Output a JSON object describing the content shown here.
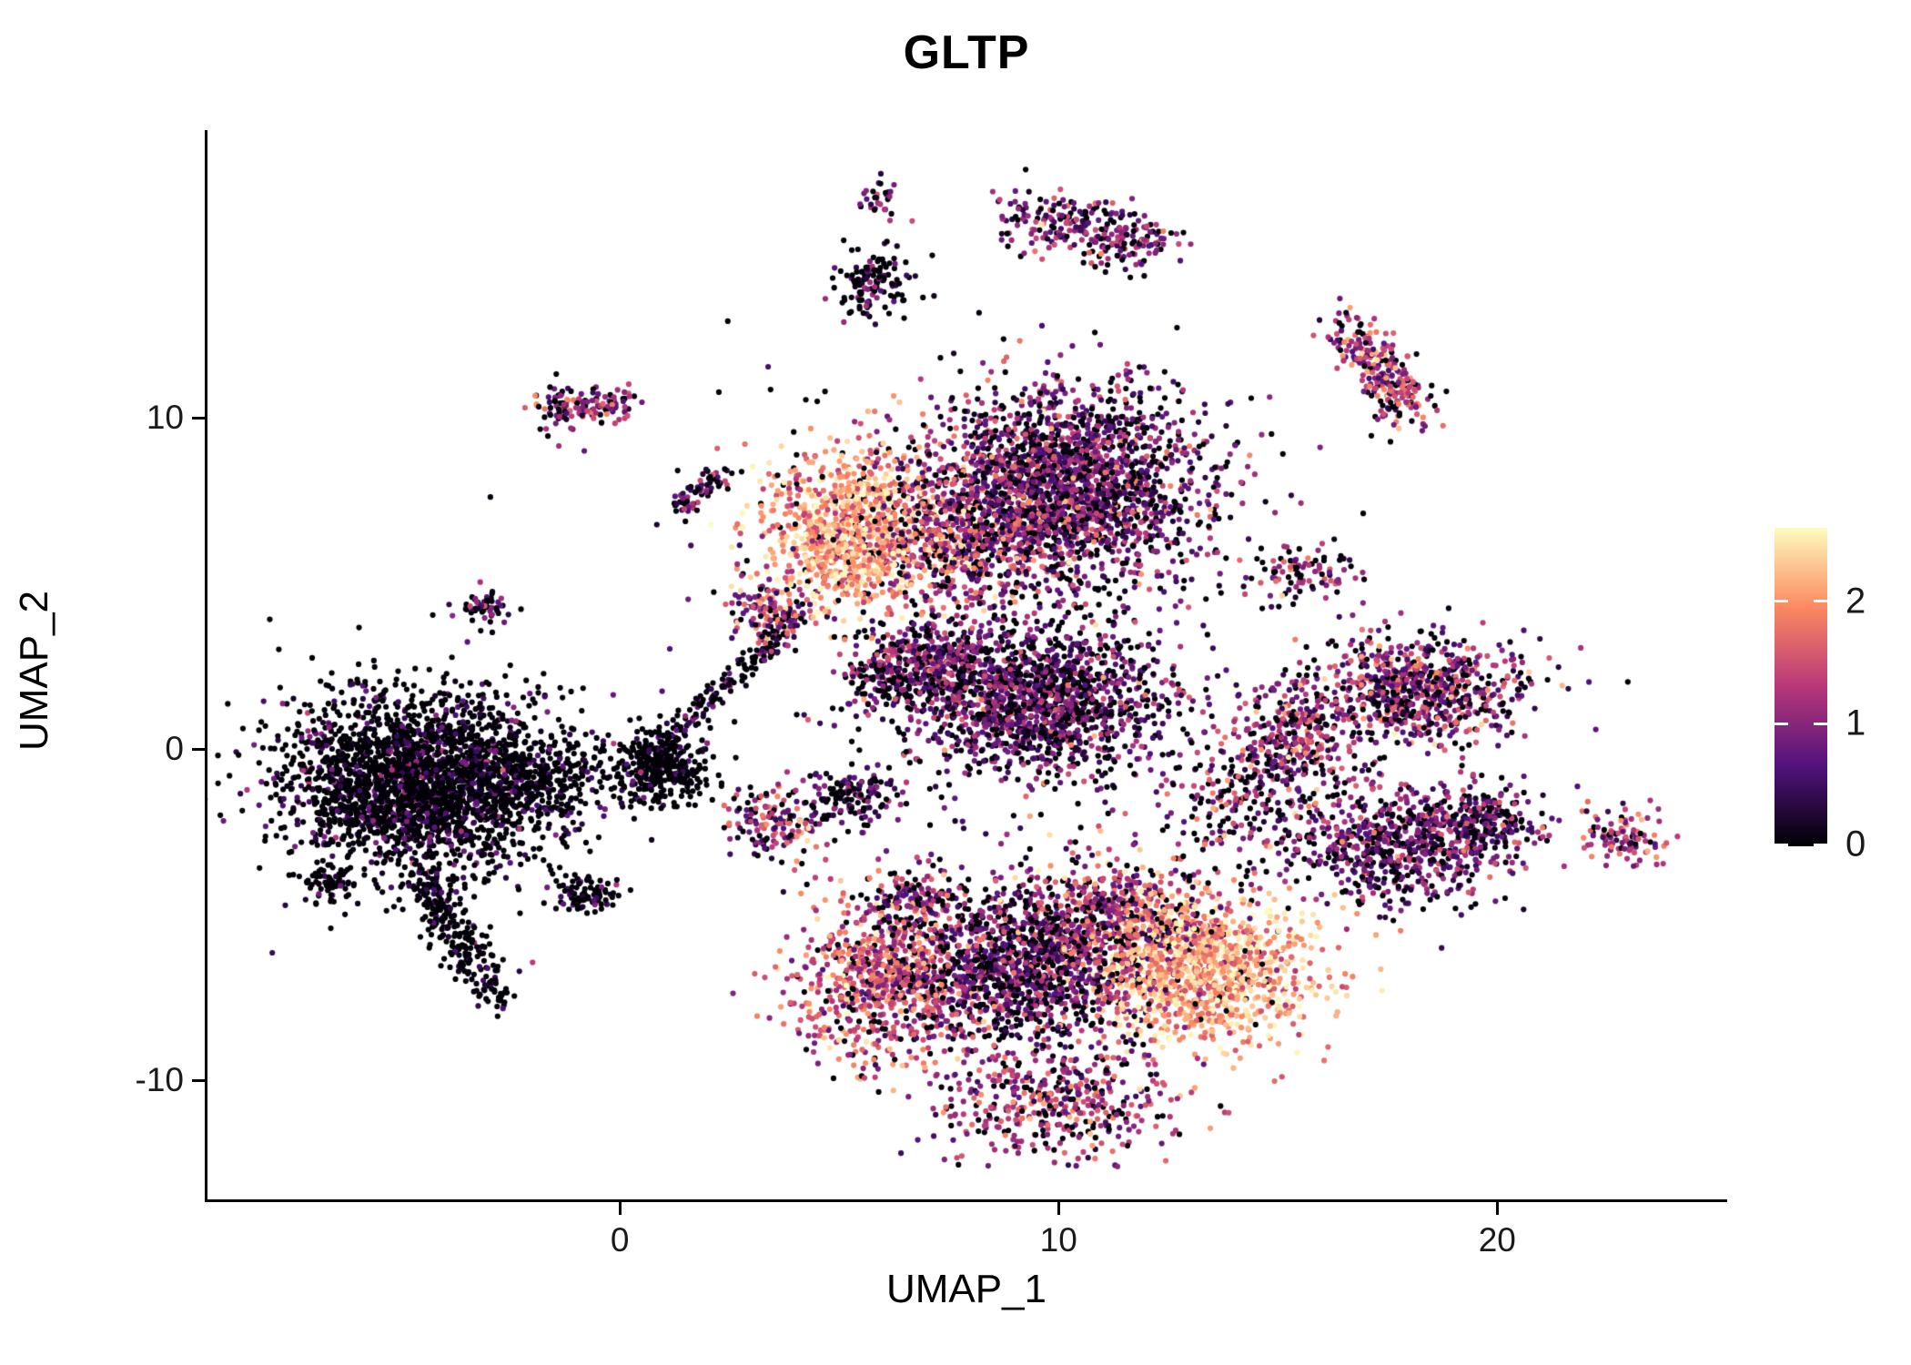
{
  "chart_data": {
    "type": "scatter",
    "title": "GLTP",
    "xlabel": "UMAP_1",
    "ylabel": "UMAP_2",
    "xlim": [
      -9.4,
      25.2
    ],
    "ylim": [
      -13.6,
      18.7
    ],
    "x_ticks": [
      0,
      10,
      20
    ],
    "y_ticks": [
      -10,
      0,
      10
    ],
    "grid": false,
    "point_radius": 3.1,
    "color_max": 2.6,
    "legend": {
      "position": "right",
      "ticks": [
        0,
        1,
        2
      ],
      "max": 2.6,
      "colormap": "magma"
    },
    "colormap_stops": [
      "#000004",
      "#51127c",
      "#b73779",
      "#fc8961",
      "#fcfdbf"
    ],
    "clusters": [
      {
        "name": "left-main",
        "n": 2600,
        "cx": -4.5,
        "cy": -1.0,
        "sx": 1.55,
        "sy": 1.35,
        "zero": 0.72,
        "mean": 0.55,
        "sd": 0.35
      },
      {
        "name": "left-lobe-east",
        "n": 350,
        "cx": 0.9,
        "cy": -0.6,
        "sx": 0.55,
        "sy": 0.55,
        "zero": 0.85,
        "mean": 0.35,
        "sd": 0.3
      },
      {
        "name": "left-bridge",
        "n": 200,
        "cx": -1.6,
        "cy": -0.8,
        "sx": 0.7,
        "sy": 0.6,
        "zero": 0.8,
        "mean": 0.4,
        "sd": 0.3
      },
      {
        "name": "left-tail",
        "n": 260,
        "shape": "stripe",
        "x1": -4.6,
        "y1": -3.8,
        "x2": -2.8,
        "y2": -7.6,
        "jitter": 0.28,
        "zero": 0.8,
        "mean": 0.4,
        "sd": 0.3
      },
      {
        "name": "left-tiny-sw",
        "n": 60,
        "cx": -6.65,
        "cy": -4.1,
        "sx": 0.3,
        "sy": 0.25,
        "zero": 0.8,
        "mean": 0.4,
        "sd": 0.3
      },
      {
        "name": "left-small-south",
        "n": 90,
        "cx": -0.75,
        "cy": -4.35,
        "sx": 0.45,
        "sy": 0.3,
        "zero": 0.75,
        "mean": 0.5,
        "sd": 0.35
      },
      {
        "name": "left-tiny-mid",
        "n": 55,
        "cx": -3.1,
        "cy": 4.3,
        "sx": 0.35,
        "sy": 0.3,
        "zero": 0.5,
        "mean": 0.7,
        "sd": 0.4
      },
      {
        "name": "diag-connector",
        "n": 160,
        "shape": "stripe",
        "x1": 0.9,
        "y1": 0.1,
        "x2": 4.2,
        "y2": 4.0,
        "jitter": 0.18,
        "zero": 0.6,
        "mean": 0.5,
        "sd": 0.35
      },
      {
        "name": "crescent-high",
        "n": 950,
        "cx": 5.3,
        "cy": 6.6,
        "sx": 1.0,
        "sy": 1.25,
        "zero": 0.03,
        "mean": 2.05,
        "sd": 0.42
      },
      {
        "name": "crescent-bridge",
        "n": 420,
        "cx": 7.6,
        "cy": 6.3,
        "sx": 0.9,
        "sy": 1.05,
        "zero": 0.15,
        "mean": 1.3,
        "sd": 0.6
      },
      {
        "name": "top-main",
        "n": 2300,
        "cx": 10.1,
        "cy": 7.9,
        "sx": 1.6,
        "sy": 1.5,
        "zero": 0.22,
        "mean": 0.85,
        "sd": 0.55
      },
      {
        "name": "mid-main",
        "n": 1500,
        "cx": 9.6,
        "cy": 1.5,
        "sx": 1.45,
        "sy": 1.1,
        "zero": 0.3,
        "mean": 0.75,
        "sd": 0.5
      },
      {
        "name": "mid-west-arm",
        "n": 260,
        "cx": 7.1,
        "cy": 2.7,
        "sx": 0.55,
        "sy": 0.7,
        "zero": 0.3,
        "mean": 0.85,
        "sd": 0.5
      },
      {
        "name": "mid-west-sprinkle",
        "n": 130,
        "cx": 3.5,
        "cy": 4.2,
        "sx": 0.5,
        "sy": 0.5,
        "zero": 0.2,
        "mean": 1.3,
        "sd": 0.55
      },
      {
        "name": "center-upper-small",
        "n": 150,
        "cx": 6.0,
        "cy": 2.3,
        "sx": 0.5,
        "sy": 0.6,
        "zero": 0.35,
        "mean": 0.9,
        "sd": 0.5
      },
      {
        "name": "bottom-west",
        "n": 750,
        "cx": 6.0,
        "cy": -7.0,
        "sx": 1.0,
        "sy": 1.25,
        "zero": 0.12,
        "mean": 1.55,
        "sd": 0.5
      },
      {
        "name": "bottom-center",
        "n": 1300,
        "cx": 9.2,
        "cy": -6.6,
        "sx": 1.3,
        "sy": 1.2,
        "zero": 0.3,
        "mean": 0.8,
        "sd": 0.5
      },
      {
        "name": "bottom-east-high",
        "n": 1200,
        "cx": 13.2,
        "cy": -6.6,
        "sx": 1.3,
        "sy": 1.1,
        "zero": 0.04,
        "mean": 2.1,
        "sd": 0.42
      },
      {
        "name": "bottom-bridge",
        "n": 500,
        "cx": 11.2,
        "cy": -5.0,
        "sx": 1.0,
        "sy": 0.9,
        "zero": 0.15,
        "mean": 1.3,
        "sd": 0.6
      },
      {
        "name": "bottom-tail",
        "n": 450,
        "cx": 10.0,
        "cy": -10.6,
        "sx": 1.4,
        "sy": 0.85,
        "zero": 0.2,
        "mean": 1.15,
        "sd": 0.55
      },
      {
        "name": "right-main",
        "n": 750,
        "cx": 18.2,
        "cy": 1.8,
        "sx": 1.2,
        "sy": 0.85,
        "zero": 0.18,
        "mean": 1.0,
        "sd": 0.6
      },
      {
        "name": "right-west",
        "n": 300,
        "cx": 15.4,
        "cy": 0.3,
        "sx": 0.7,
        "sy": 0.8,
        "zero": 0.2,
        "mean": 1.1,
        "sd": 0.55
      },
      {
        "name": "right-south",
        "n": 600,
        "cx": 17.8,
        "cy": -3.0,
        "sx": 1.2,
        "sy": 0.9,
        "zero": 0.25,
        "mean": 0.8,
        "sd": 0.5
      },
      {
        "name": "right-south-east",
        "n": 250,
        "cx": 19.6,
        "cy": -2.2,
        "sx": 0.7,
        "sy": 0.6,
        "zero": 0.25,
        "mean": 0.85,
        "sd": 0.5
      },
      {
        "name": "top-arc",
        "n": 280,
        "shape": "stripe",
        "x1": 9.0,
        "y1": 16.2,
        "x2": 12.2,
        "y2": 15.2,
        "jitter": 0.45,
        "zero": 0.25,
        "mean": 0.9,
        "sd": 0.5
      },
      {
        "name": "top-small-dark",
        "n": 130,
        "cx": 5.7,
        "cy": 14.0,
        "sx": 0.45,
        "sy": 0.55,
        "zero": 0.5,
        "mean": 0.5,
        "sd": 0.4
      },
      {
        "name": "top-tiny",
        "n": 30,
        "cx": 5.9,
        "cy": 16.6,
        "sx": 0.25,
        "sy": 0.3,
        "zero": 0.3,
        "mean": 0.9,
        "sd": 0.5
      },
      {
        "name": "topright-diag",
        "n": 260,
        "shape": "stripe",
        "x1": 16.6,
        "y1": 12.8,
        "x2": 18.1,
        "y2": 10.1,
        "jitter": 0.35,
        "zero": 0.15,
        "mean": 1.25,
        "sd": 0.55
      },
      {
        "name": "west-pair-a",
        "n": 90,
        "cx": -1.2,
        "cy": 10.3,
        "sx": 0.4,
        "sy": 0.3,
        "zero": 0.25,
        "mean": 1.0,
        "sd": 0.5
      },
      {
        "name": "west-pair-b",
        "n": 50,
        "cx": -0.1,
        "cy": 10.5,
        "sx": 0.3,
        "sy": 0.25,
        "zero": 0.25,
        "mean": 1.0,
        "sd": 0.5
      },
      {
        "name": "west-diag-line",
        "n": 70,
        "shape": "stripe",
        "x1": 1.3,
        "y1": 7.3,
        "x2": 2.4,
        "y2": 8.4,
        "jitter": 0.15,
        "zero": 0.3,
        "mean": 0.9,
        "sd": 0.5
      },
      {
        "name": "center-small-a",
        "n": 160,
        "cx": 3.6,
        "cy": -2.2,
        "sx": 0.55,
        "sy": 0.5,
        "zero": 0.2,
        "mean": 1.1,
        "sd": 0.6
      },
      {
        "name": "center-small-b",
        "n": 130,
        "cx": 5.4,
        "cy": -1.4,
        "sx": 0.5,
        "sy": 0.45,
        "zero": 0.5,
        "mean": 0.6,
        "sd": 0.4
      },
      {
        "name": "center-small-c",
        "n": 130,
        "cx": 6.7,
        "cy": -4.5,
        "sx": 0.5,
        "sy": 0.5,
        "zero": 0.3,
        "mean": 1.0,
        "sd": 0.55
      },
      {
        "name": "right-tiny-top",
        "n": 90,
        "cx": 15.6,
        "cy": 5.3,
        "sx": 0.55,
        "sy": 0.4,
        "zero": 0.25,
        "mean": 1.1,
        "sd": 0.5
      },
      {
        "name": "far-right-small",
        "n": 100,
        "cx": 22.9,
        "cy": -2.6,
        "sx": 0.5,
        "sy": 0.45,
        "zero": 0.15,
        "mean": 1.3,
        "sd": 0.5
      },
      {
        "name": "mid-right-scatter",
        "n": 260,
        "cx": 14.5,
        "cy": -1.5,
        "sx": 1.3,
        "sy": 1.2,
        "zero": 0.3,
        "mean": 0.9,
        "sd": 0.55
      },
      {
        "name": "sparse-noise",
        "n": 300,
        "cx": 9.0,
        "cy": 3.0,
        "sx": 4.5,
        "sy": 4.5,
        "zero": 0.5,
        "mean": 0.5,
        "sd": 0.4
      }
    ]
  }
}
